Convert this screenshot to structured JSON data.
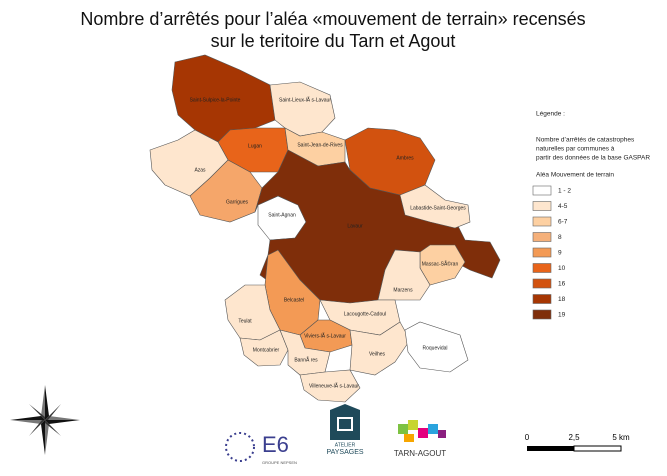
{
  "title": [
    "Nombre d’arrêtés pour l’aléa «mouvement de terrain» recensés",
    "sur le teritoire du Tarn et Agout"
  ],
  "communes": [
    {
      "name": "Saint-Sulpice-la-Pointe",
      "color": "#a63603"
    },
    {
      "name": "Saint-Lieux-lÃ s-Lavaur",
      "color": "#fee6ce"
    },
    {
      "name": "Lugan",
      "color": "#e8641a"
    },
    {
      "name": "Saint-Jean-de-Rives",
      "color": "#fdd0a2"
    },
    {
      "name": "Ambres",
      "color": "#d2520f"
    },
    {
      "name": "Azas",
      "color": "#fee6ce"
    },
    {
      "name": "Garrigues",
      "color": "#f5a66a"
    },
    {
      "name": "Saint-Agnan",
      "color": "#ffffff"
    },
    {
      "name": "Lavaur",
      "color": "#7f2e0a"
    },
    {
      "name": "Labastide-Saint-Georges",
      "color": "#fee6ce"
    },
    {
      "name": "Massac-SÃ©ran",
      "color": "#fdd0a2"
    },
    {
      "name": "Marzens",
      "color": "#fee6ce"
    },
    {
      "name": "Belcastel",
      "color": "#f39a55"
    },
    {
      "name": "Lacougotte-Cadoul",
      "color": "#fee6ce"
    },
    {
      "name": "Teulat",
      "color": "#fee6ce"
    },
    {
      "name": "Viviers-lÃ s-Lavaur",
      "color": "#f39a55"
    },
    {
      "name": "Montcabrier",
      "color": "#fee6ce"
    },
    {
      "name": "BannÃ res",
      "color": "#fee6ce"
    },
    {
      "name": "Veilhes",
      "color": "#fee6ce"
    },
    {
      "name": "Roquevidal",
      "color": "#ffffff"
    },
    {
      "name": "Villeneuve-lÃ s-Lavaur",
      "color": "#fee6ce"
    }
  ],
  "legend": {
    "title": "Légende :",
    "description": [
      "Nombre d’arrêtés de catastrophes",
      "naturelles par communes à",
      "partir des données de la base GASPAR"
    ],
    "subtitle": "Aléa Mouvement de terrain",
    "classes": [
      {
        "label": "1 - 2",
        "color": "#ffffff"
      },
      {
        "label": "4-5",
        "color": "#fee6ce"
      },
      {
        "label": "6-7",
        "color": "#fdd0a2"
      },
      {
        "label": "8",
        "color": "#f5b07a"
      },
      {
        "label": "9",
        "color": "#f39a55"
      },
      {
        "label": "10",
        "color": "#e8641a"
      },
      {
        "label": "16",
        "color": "#d2520f"
      },
      {
        "label": "18",
        "color": "#a63603"
      },
      {
        "label": "19",
        "color": "#7f2e0a"
      }
    ]
  },
  "scale": [
    "0",
    "2,5",
    "5 km"
  ],
  "logos": {
    "e6": "E6",
    "e6_sub": "GROUPE NEPSEN",
    "atelier": "ATELIER",
    "paysages": "PAYSAGES",
    "tarn": "TARN-AGOUT"
  }
}
